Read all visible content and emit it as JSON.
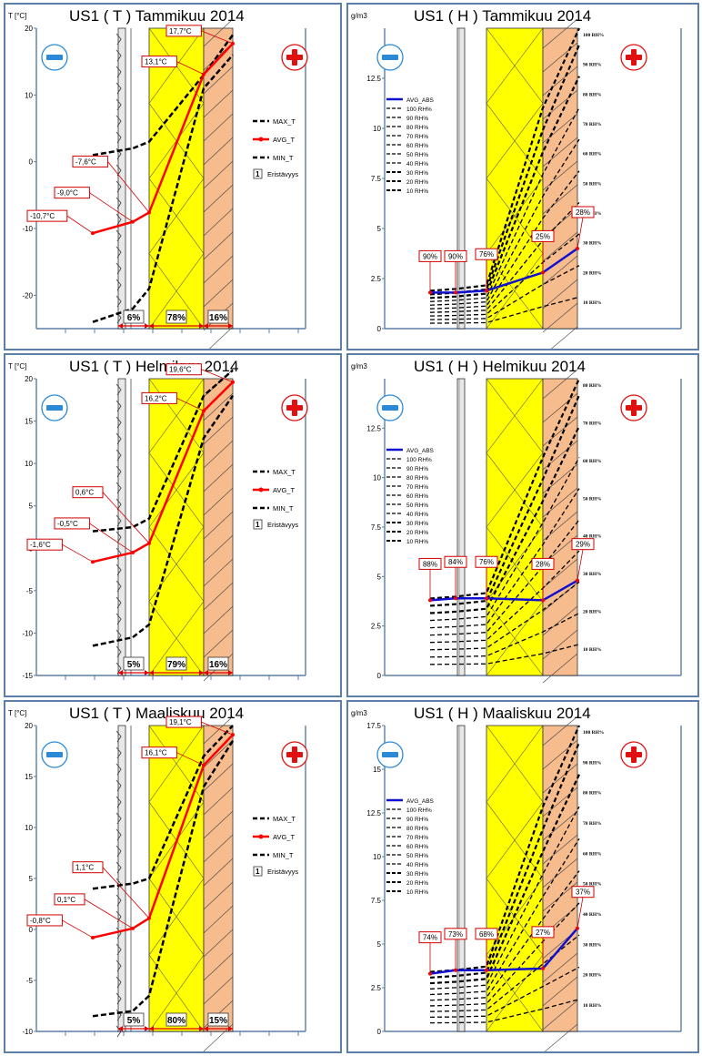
{
  "colors": {
    "insulation": "#ffff00",
    "cladding": "#f6bc8e",
    "avg_t": "#ff0000",
    "avg_abs": "#1010d0",
    "frame": "#5b7fa6",
    "label_border": "#d00000"
  },
  "icons": {
    "minus": "minus-icon",
    "plus": "plus-icon"
  },
  "temperature_legend": [
    "MAX_T",
    "AVG_T",
    "MIN_T"
  ],
  "insulation_key": {
    "number": "1",
    "label": "Eristävyys"
  },
  "humidity_legend": [
    "AVG_ABS",
    "100 RH%",
    "90 RH%",
    "80 RH%",
    "70 RH%",
    "60 RH%",
    "50 RH%",
    "40 RH%",
    "30 RH%",
    "20 RH%",
    "10 RH%"
  ],
  "chart_data": [
    {
      "type": "line",
      "title": "US1 ( T ) Tammikuu 2014",
      "ylabel": "T [°C]",
      "ylim": [
        -25,
        20
      ],
      "yticks": [
        20,
        10,
        0,
        -10,
        -20
      ],
      "x": [
        -3,
        -1,
        0,
        1,
        3,
        5
      ],
      "series": [
        {
          "name": "MAX_T",
          "values": [
            1,
            2,
            3,
            13,
            19,
            null
          ]
        },
        {
          "name": "AVG_T",
          "values": [
            -10.7,
            -9.0,
            -7.6,
            13.1,
            17.7,
            null
          ]
        },
        {
          "name": "MIN_T",
          "values": [
            -24,
            -22,
            -19,
            11,
            16,
            null
          ]
        }
      ],
      "labels": [
        "-10,7°C",
        "-9,0°C",
        "-7,6°C",
        "13,1°C",
        "17,7°C"
      ],
      "percentages": [
        "6%",
        "78%",
        "16%"
      ]
    },
    {
      "type": "line",
      "title": "US1 ( H ) Tammikuu 2014",
      "ylabel": "g/m3",
      "ylim": [
        0,
        15
      ],
      "yticks": [
        12.5,
        10,
        7.5,
        5,
        2.5,
        0
      ],
      "series": [
        {
          "name": "AVG_ABS",
          "values": [
            1.8,
            1.8,
            1.9,
            2.8,
            4.0
          ]
        }
      ],
      "labels": [
        "90%",
        "90%",
        "76%",
        "25%",
        "28%"
      ],
      "rh_labels": [
        "100 RH%",
        "90 RH%",
        "80 RH%",
        "70 RH%",
        "60 RH%",
        "50 RH%",
        "40 RH%",
        "30 RH%",
        "20 RH%",
        "10 RH%"
      ]
    },
    {
      "type": "line",
      "title": "US1 ( T ) Helmikuu 2014",
      "ylabel": "T [°C]",
      "ylim": [
        -15,
        20
      ],
      "yticks": [
        20,
        15,
        10,
        5,
        0,
        -5,
        -10,
        -15
      ],
      "series": [
        {
          "name": "MAX_T",
          "values": [
            2,
            2.5,
            3.5,
            18,
            21
          ]
        },
        {
          "name": "AVG_T",
          "values": [
            -1.6,
            -0.5,
            0.6,
            16.2,
            19.6
          ]
        },
        {
          "name": "MIN_T",
          "values": [
            -11.5,
            -10.5,
            -9,
            13,
            18
          ]
        }
      ],
      "labels": [
        "-1,6°C",
        "-0,5°C",
        "0,6°C",
        "16,2°C",
        "19,6°C"
      ],
      "percentages": [
        "5%",
        "79%",
        "16%"
      ]
    },
    {
      "type": "line",
      "title": "US1 ( H ) Helmikuu 2014",
      "ylabel": "g/m3",
      "ylim": [
        0,
        15
      ],
      "yticks": [
        12.5,
        10,
        7.5,
        5,
        2.5,
        0
      ],
      "series": [
        {
          "name": "AVG_ABS",
          "values": [
            3.8,
            3.9,
            3.9,
            3.8,
            4.8
          ]
        }
      ],
      "labels": [
        "88%",
        "84%",
        "76%",
        "28%",
        "29%"
      ],
      "rh_labels": [
        "80 RH%",
        "70 RH%",
        "60 RH%",
        "50 RH%",
        "40 RH%",
        "30 RH%",
        "20 RH%",
        "10 RH%"
      ]
    },
    {
      "type": "line",
      "title": "US1 ( T ) Maaliskuu 2014",
      "ylabel": "T [°C]",
      "ylim": [
        -10,
        20
      ],
      "yticks": [
        20,
        15,
        10,
        5,
        0,
        -5,
        -10
      ],
      "series": [
        {
          "name": "MAX_T",
          "values": [
            4,
            4.5,
            5,
            17,
            20
          ]
        },
        {
          "name": "AVG_T",
          "values": [
            -0.8,
            0.1,
            1.1,
            16.1,
            19.1
          ]
        },
        {
          "name": "MIN_T",
          "values": [
            -8.5,
            -8,
            -6.5,
            14,
            18.5
          ]
        }
      ],
      "labels": [
        "-0,8°C",
        "0,1°C",
        "1,1°C",
        "16,1°C",
        "19,1°C"
      ],
      "percentages": [
        "5%",
        "80%",
        "15%"
      ]
    },
    {
      "type": "line",
      "title": "US1 ( H ) Maaliskuu 2014",
      "ylabel": "g/m3",
      "ylim": [
        0,
        17.5
      ],
      "yticks": [
        17.5,
        15,
        12.5,
        10,
        7.5,
        5,
        2.5,
        0
      ],
      "series": [
        {
          "name": "AVG_ABS",
          "values": [
            3.3,
            3.5,
            3.5,
            3.6,
            5.9
          ]
        }
      ],
      "labels": [
        "74%",
        "73%",
        "68%",
        "27%",
        "37%"
      ],
      "rh_labels": [
        "100 RH%",
        "90 RH%",
        "80 RH%",
        "70 RH%",
        "60 RH%",
        "50 RH%",
        "40 RH%",
        "30 RH%",
        "20 RH%",
        "10 RH%"
      ]
    }
  ]
}
